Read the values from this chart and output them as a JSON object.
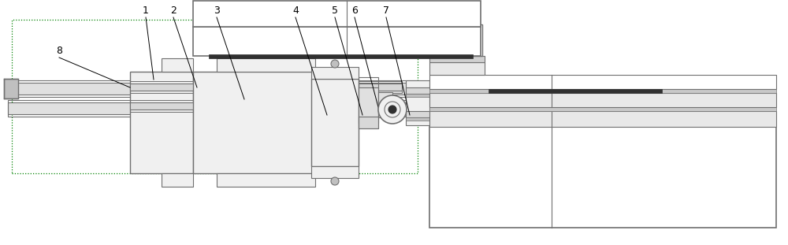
{
  "bg_color": "#ffffff",
  "lc": "#707070",
  "dc": "#303030",
  "gc": "#008000",
  "fig_width": 10.0,
  "fig_height": 3.11
}
